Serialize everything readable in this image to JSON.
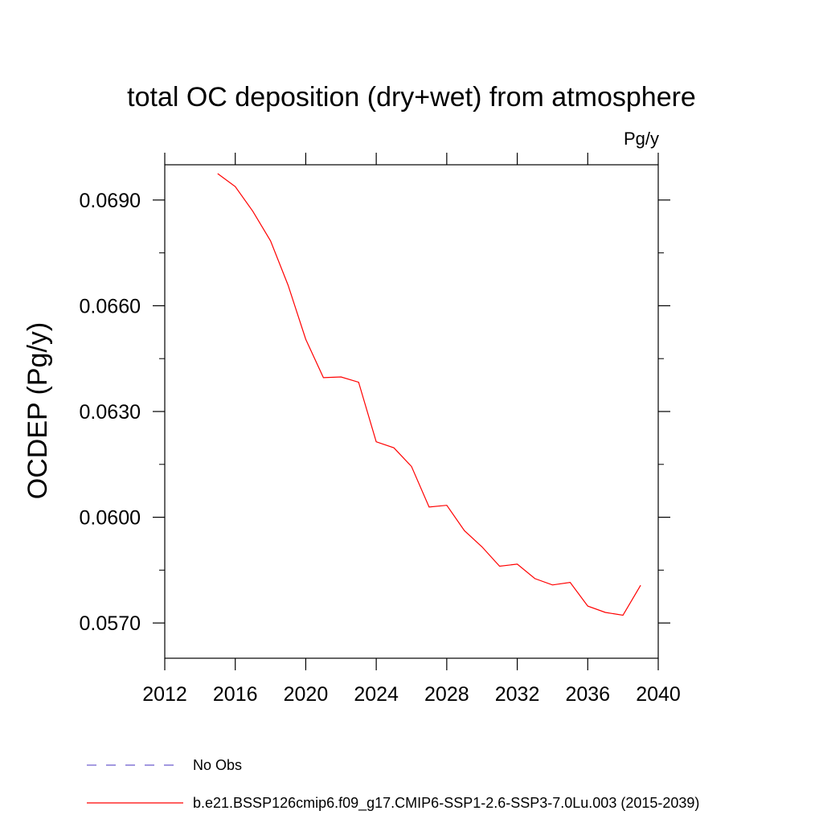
{
  "chart_data": {
    "type": "line",
    "title": "total OC deposition (dry+wet) from atmosphere",
    "units": "Pg/y",
    "ylabel": "OCDEP  (Pg/y)",
    "xlabel": "",
    "xlim": [
      2012,
      2040
    ],
    "ylim": [
      0.056,
      0.07
    ],
    "x_ticks": [
      2012,
      2016,
      2020,
      2024,
      2028,
      2032,
      2036,
      2040
    ],
    "x_tick_labels": [
      "2012",
      "2016",
      "2020",
      "2024",
      "2028",
      "2032",
      "2036",
      "2040"
    ],
    "y_ticks": [
      0.057,
      0.06,
      0.063,
      0.066,
      0.069
    ],
    "y_tick_labels": [
      "0.0570",
      "0.0600",
      "0.0630",
      "0.0660",
      "0.0690"
    ],
    "grid": false,
    "legend_position": "bottom",
    "series": [
      {
        "name": "No Obs",
        "color": "#6a5acd",
        "style": "dashed",
        "x": [],
        "values": []
      },
      {
        "name": "b.e21.BSSP126cmip6.f09_g17.CMIP6-SSP1-2.6-SSP3-7.0Lu.003 (2015-2039)",
        "color": "#ff0000",
        "style": "solid",
        "x": [
          2015,
          2016,
          2017,
          2018,
          2019,
          2020,
          2021,
          2022,
          2023,
          2024,
          2025,
          2026,
          2027,
          2028,
          2029,
          2030,
          2031,
          2032,
          2033,
          2034,
          2035,
          2036,
          2037,
          2038,
          2039
        ],
        "values": [
          0.06975,
          0.06938,
          0.06868,
          0.06784,
          0.06658,
          0.06505,
          0.06396,
          0.06398,
          0.06383,
          0.06214,
          0.06197,
          0.06144,
          0.06029,
          0.06034,
          0.05962,
          0.05916,
          0.05861,
          0.05867,
          0.05826,
          0.05808,
          0.05815,
          0.05748,
          0.0573,
          0.05722,
          0.05807
        ]
      }
    ]
  }
}
